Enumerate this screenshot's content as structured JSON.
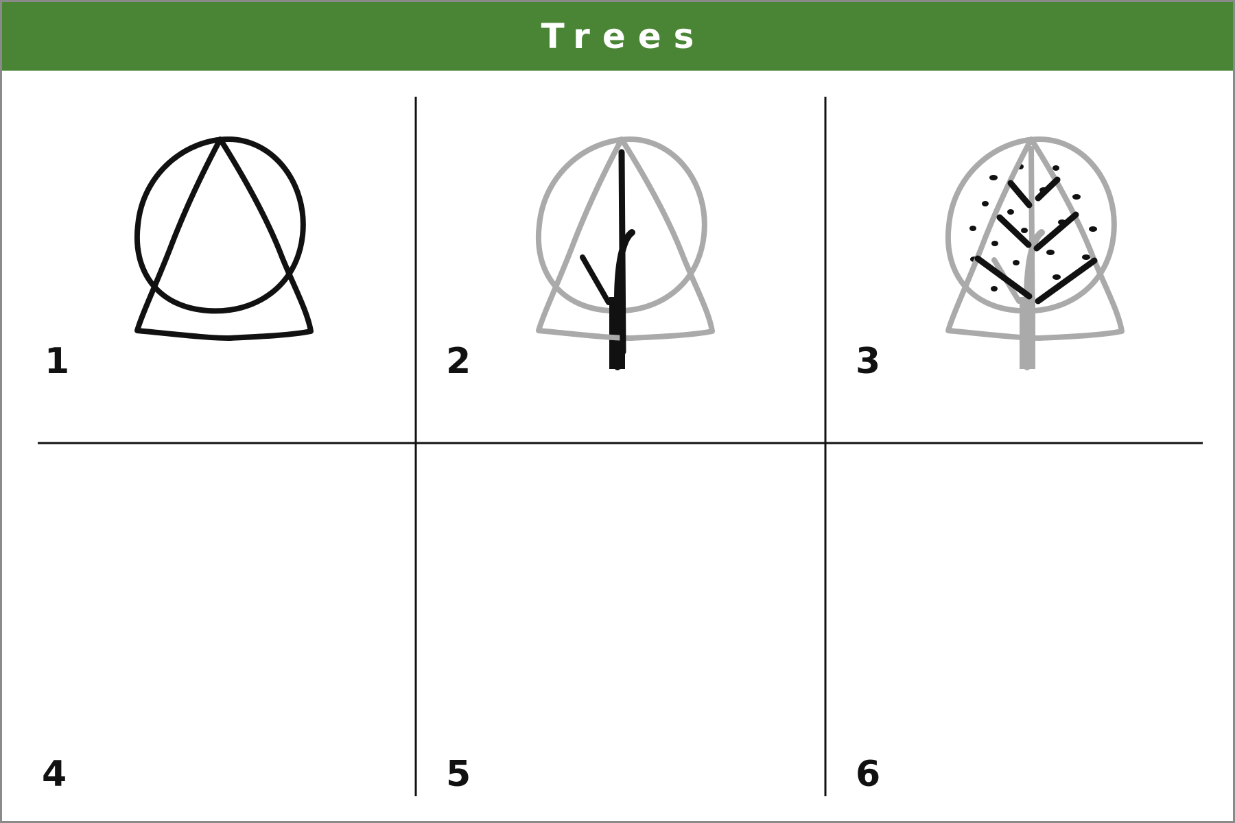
{
  "title": "Trees",
  "steps": [
    {
      "number": "1",
      "shape": "round-crown-outline"
    },
    {
      "number": "2",
      "shape": "round-crown-with-trunk"
    },
    {
      "number": "3",
      "shape": "round-crown-with-dots"
    },
    {
      "number": "4",
      "shape": "triangle-crown-outline"
    },
    {
      "number": "5",
      "shape": "triangle-crown-with-trunk"
    },
    {
      "number": "6",
      "shape": "triangle-crown-with-branches"
    }
  ],
  "colors": {
    "header": "#4a8535",
    "new_stroke": "#111111",
    "previous_stroke": "#aaaaaa",
    "grid_line": "#111111",
    "border": "#8a8a8a"
  }
}
